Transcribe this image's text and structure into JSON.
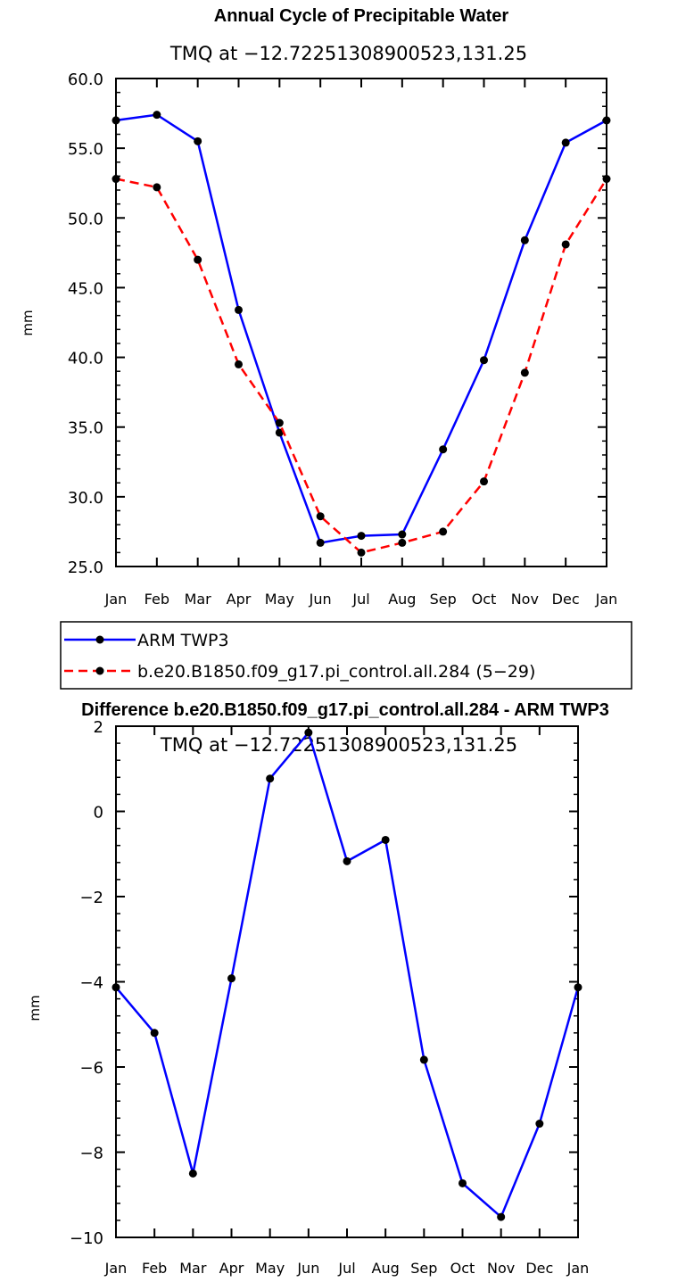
{
  "chart_data": [
    {
      "type": "line",
      "title": "Annual Cycle of Precipitable Water",
      "subtitle": "TMQ at −12.72251308900523,131.25",
      "ylabel": "mm",
      "xlabel": "",
      "categories": [
        "Jan",
        "Feb",
        "Mar",
        "Apr",
        "May",
        "Jun",
        "Jul",
        "Aug",
        "Sep",
        "Oct",
        "Nov",
        "Dec",
        "Jan"
      ],
      "ylim": [
        25.0,
        60.0
      ],
      "yticks": [
        "25.0",
        "30.0",
        "35.0",
        "40.0",
        "45.0",
        "50.0",
        "55.0",
        "60.0"
      ],
      "ytick_values": [
        25,
        30,
        35,
        40,
        45,
        50,
        55,
        60
      ],
      "legend": "below",
      "series": [
        {
          "name": "ARM TWP3",
          "color": "#0000ff",
          "dash": "solid",
          "values": [
            57.0,
            57.4,
            55.5,
            43.4,
            34.6,
            26.7,
            27.2,
            27.3,
            33.4,
            39.8,
            48.4,
            55.4,
            57.0
          ]
        },
        {
          "name": "b.e20.B1850.f09_g17.pi_control.all.284 (5−29)",
          "color": "#ff0000",
          "dash": "dashed",
          "values": [
            52.8,
            52.2,
            47.0,
            39.5,
            35.3,
            28.6,
            26.0,
            26.7,
            27.5,
            31.1,
            38.9,
            48.1,
            52.8
          ]
        }
      ]
    },
    {
      "type": "line",
      "title": "Difference b.e20.B1850.f09_g17.pi_control.all.284 - ARM TWP3",
      "subtitle": "TMQ at −12.72251308900523,131.25",
      "ylabel": "mm",
      "xlabel": "",
      "categories": [
        "Jan",
        "Feb",
        "Mar",
        "Apr",
        "May",
        "Jun",
        "Jul",
        "Aug",
        "Sep",
        "Oct",
        "Nov",
        "Dec",
        "Jan"
      ],
      "ylim": [
        -10,
        2
      ],
      "yticks": [
        "−10",
        "−8",
        "−6",
        "−4",
        "−2",
        "0",
        "2"
      ],
      "ytick_values": [
        -10,
        -8,
        -6,
        -4,
        -2,
        0,
        2
      ],
      "series": [
        {
          "name": "Difference",
          "color": "#0000ff",
          "dash": "solid",
          "values": [
            -4.13,
            -5.2,
            -8.5,
            -3.92,
            0.77,
            1.85,
            -1.17,
            -0.67,
            -5.83,
            -8.73,
            -9.52,
            -7.33,
            -4.13
          ]
        }
      ]
    }
  ]
}
